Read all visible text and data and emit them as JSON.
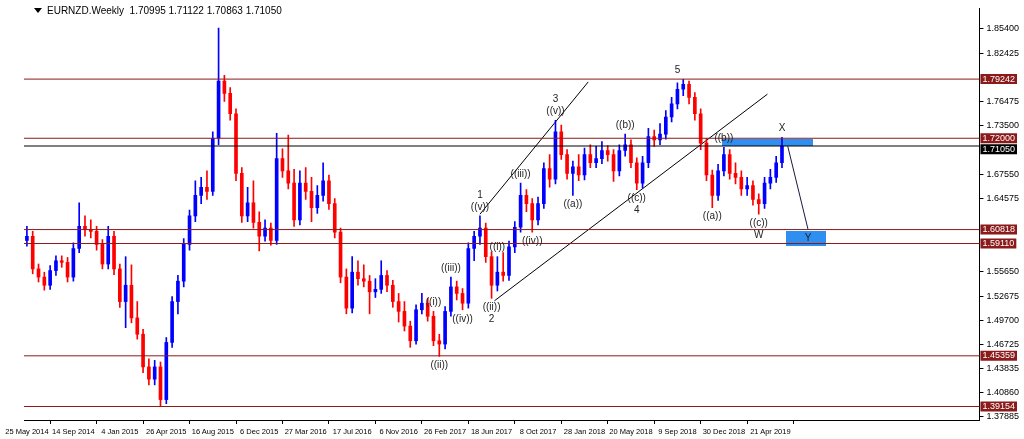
{
  "chart_data": {
    "type": "candlestick",
    "title": "EURNZD.Weekly  1.70995 1.71122 1.70863 1.71050",
    "x": [
      "2014-05-25",
      "2014-06-08",
      "2014-06-22",
      "2014-07-06",
      "2014-07-20",
      "2014-08-03",
      "2014-08-17",
      "2014-08-31",
      "2014-09-14",
      "2014-09-28",
      "2014-10-12",
      "2014-10-26",
      "2014-11-09",
      "2014-11-23",
      "2014-12-07",
      "2014-12-21",
      "2015-01-04",
      "2015-01-18",
      "2015-02-01",
      "2015-02-15",
      "2015-03-01",
      "2015-03-15",
      "2015-03-29",
      "2015-04-12",
      "2015-04-26",
      "2015-05-10",
      "2015-05-24",
      "2015-06-07",
      "2015-06-21",
      "2015-07-05",
      "2015-07-19",
      "2015-08-02",
      "2015-08-16",
      "2015-08-30",
      "2015-09-13",
      "2015-09-27",
      "2015-10-11",
      "2015-10-25",
      "2015-11-08",
      "2015-11-22",
      "2015-12-06",
      "2015-12-20",
      "2016-01-03",
      "2016-01-17",
      "2016-01-31",
      "2016-02-14",
      "2016-02-28",
      "2016-03-13",
      "2016-03-27",
      "2016-04-10",
      "2016-04-24",
      "2016-05-08",
      "2016-05-22",
      "2016-06-05",
      "2016-06-19",
      "2016-07-03",
      "2016-07-17",
      "2016-07-31",
      "2016-08-14",
      "2016-08-28",
      "2016-09-11",
      "2016-09-25",
      "2016-10-09",
      "2016-10-23",
      "2016-11-06",
      "2016-11-20",
      "2016-12-04",
      "2016-12-18",
      "2017-01-01",
      "2017-01-15",
      "2017-01-29",
      "2017-02-12",
      "2017-02-26",
      "2017-03-12",
      "2017-03-26",
      "2017-04-09",
      "2017-04-23",
      "2017-05-07",
      "2017-05-21",
      "2017-06-04",
      "2017-06-18",
      "2017-07-02",
      "2017-07-16",
      "2017-07-30",
      "2017-08-13",
      "2017-08-27",
      "2017-09-10",
      "2017-09-24",
      "2017-10-08",
      "2017-10-22",
      "2017-11-05",
      "2017-11-19",
      "2017-12-03",
      "2017-12-17",
      "2017-12-31",
      "2018-01-14",
      "2018-01-28",
      "2018-02-11",
      "2018-02-25",
      "2018-03-11",
      "2018-03-25",
      "2018-04-08",
      "2018-04-22",
      "2018-05-06",
      "2018-05-20",
      "2018-06-03",
      "2018-06-17",
      "2018-07-01",
      "2018-07-15",
      "2018-07-29",
      "2018-08-12",
      "2018-08-26",
      "2018-09-09",
      "2018-09-23",
      "2018-10-07",
      "2018-10-21",
      "2018-11-04",
      "2018-11-18",
      "2018-12-02",
      "2018-12-16",
      "2018-12-30",
      "2019-01-13",
      "2019-01-27",
      "2019-02-10",
      "2019-02-24",
      "2019-03-10",
      "2019-03-24",
      "2019-04-07",
      "2019-04-21",
      "2019-05-05",
      "2019-05-19"
    ],
    "ohlc": [
      [
        1.595,
        1.612,
        1.588,
        1.6
      ],
      [
        1.6,
        1.606,
        1.554,
        1.56
      ],
      [
        1.56,
        1.566,
        1.544,
        1.55
      ],
      [
        1.55,
        1.556,
        1.534,
        1.54
      ],
      [
        1.54,
        1.564,
        1.535,
        1.558
      ],
      [
        1.558,
        1.576,
        1.552,
        1.57
      ],
      [
        1.57,
        1.576,
        1.562,
        1.568
      ],
      [
        1.568,
        1.574,
        1.544,
        1.55
      ],
      [
        1.55,
        1.592,
        1.545,
        1.585
      ],
      [
        1.585,
        1.641,
        1.58,
        1.612
      ],
      [
        1.612,
        1.625,
        1.6,
        1.608
      ],
      [
        1.608,
        1.62,
        1.598,
        1.606
      ],
      [
        1.606,
        1.612,
        1.583,
        1.59
      ],
      [
        1.59,
        1.596,
        1.56,
        1.566
      ],
      [
        1.566,
        1.612,
        1.56,
        1.6
      ],
      [
        1.6,
        1.606,
        1.553,
        1.56
      ],
      [
        1.56,
        1.566,
        1.513,
        1.52
      ],
      [
        1.52,
        1.575,
        1.488,
        1.54
      ],
      [
        1.54,
        1.565,
        1.494,
        1.5
      ],
      [
        1.5,
        1.52,
        1.474,
        1.48
      ],
      [
        1.48,
        1.486,
        1.433,
        1.44
      ],
      [
        1.44,
        1.45,
        1.418,
        1.425
      ],
      [
        1.425,
        1.448,
        1.418,
        1.44
      ],
      [
        1.44,
        1.446,
        1.3915,
        1.4
      ],
      [
        1.4,
        1.476,
        1.395,
        1.47
      ],
      [
        1.47,
        1.526,
        1.464,
        1.52
      ],
      [
        1.52,
        1.552,
        1.505,
        1.545
      ],
      [
        1.545,
        1.597,
        1.538,
        1.59
      ],
      [
        1.59,
        1.632,
        1.583,
        1.625
      ],
      [
        1.625,
        1.668,
        1.618,
        1.65
      ],
      [
        1.65,
        1.672,
        1.64,
        1.66
      ],
      [
        1.66,
        1.68,
        1.645,
        1.655
      ],
      [
        1.655,
        1.728,
        1.65,
        1.72
      ],
      [
        1.72,
        1.855,
        1.712,
        1.79
      ],
      [
        1.79,
        1.797,
        1.765,
        1.775
      ],
      [
        1.775,
        1.782,
        1.742,
        1.75
      ],
      [
        1.75,
        1.756,
        1.668,
        1.677
      ],
      [
        1.677,
        1.684,
        1.617,
        1.625
      ],
      [
        1.625,
        1.66,
        1.618,
        1.641
      ],
      [
        1.641,
        1.668,
        1.61,
        1.617
      ],
      [
        1.617,
        1.63,
        1.582,
        1.6
      ],
      [
        1.6,
        1.62,
        1.594,
        1.61
      ],
      [
        1.61,
        1.616,
        1.589,
        1.595
      ],
      [
        1.595,
        1.726,
        1.59,
        1.695
      ],
      [
        1.695,
        1.707,
        1.672,
        1.68
      ],
      [
        1.68,
        1.724,
        1.658,
        1.665
      ],
      [
        1.665,
        1.682,
        1.612,
        1.62
      ],
      [
        1.62,
        1.68,
        1.614,
        1.665
      ],
      [
        1.665,
        1.684,
        1.645,
        1.655
      ],
      [
        1.655,
        1.672,
        1.618,
        1.635
      ],
      [
        1.635,
        1.662,
        1.628,
        1.65
      ],
      [
        1.65,
        1.69,
        1.643,
        1.668
      ],
      [
        1.668,
        1.675,
        1.633,
        1.64
      ],
      [
        1.64,
        1.646,
        1.598,
        1.605
      ],
      [
        1.605,
        1.61,
        1.543,
        1.55
      ],
      [
        1.55,
        1.56,
        1.505,
        1.512
      ],
      [
        1.512,
        1.575,
        1.506,
        1.556
      ],
      [
        1.556,
        1.57,
        1.54,
        1.548
      ],
      [
        1.548,
        1.565,
        1.538,
        1.545
      ],
      [
        1.545,
        1.552,
        1.505,
        1.532
      ],
      [
        1.532,
        1.548,
        1.525,
        1.535
      ],
      [
        1.535,
        1.57,
        1.53,
        1.552
      ],
      [
        1.552,
        1.558,
        1.532,
        1.54
      ],
      [
        1.54,
        1.546,
        1.513,
        1.52
      ],
      [
        1.52,
        1.53,
        1.495,
        1.508
      ],
      [
        1.508,
        1.52,
        1.484,
        1.49
      ],
      [
        1.49,
        1.496,
        1.464,
        1.472
      ],
      [
        1.472,
        1.516,
        1.468,
        1.51
      ],
      [
        1.51,
        1.53,
        1.505,
        1.518
      ],
      [
        1.518,
        1.524,
        1.496,
        1.502
      ],
      [
        1.502,
        1.508,
        1.466,
        1.472
      ],
      [
        1.472,
        1.48,
        1.453,
        1.468
      ],
      [
        1.468,
        1.514,
        1.462,
        1.508
      ],
      [
        1.508,
        1.55,
        1.502,
        1.538
      ],
      [
        1.538,
        1.545,
        1.522,
        1.53
      ],
      [
        1.53,
        1.536,
        1.51,
        1.518
      ],
      [
        1.518,
        1.592,
        1.512,
        1.585
      ],
      [
        1.585,
        1.606,
        1.57,
        1.6
      ],
      [
        1.6,
        1.625,
        1.59,
        1.61
      ],
      [
        1.61,
        1.616,
        1.568,
        1.575
      ],
      [
        1.575,
        1.581,
        1.524,
        1.54
      ],
      [
        1.54,
        1.575,
        1.533,
        1.556
      ],
      [
        1.556,
        1.58,
        1.545,
        1.552
      ],
      [
        1.552,
        1.594,
        1.546,
        1.587
      ],
      [
        1.587,
        1.618,
        1.58,
        1.611
      ],
      [
        1.611,
        1.665,
        1.605,
        1.65
      ],
      [
        1.65,
        1.657,
        1.63,
        1.64
      ],
      [
        1.64,
        1.646,
        1.605,
        1.62
      ],
      [
        1.62,
        1.648,
        1.614,
        1.64
      ],
      [
        1.64,
        1.69,
        1.634,
        1.683
      ],
      [
        1.683,
        1.7,
        1.66,
        1.67
      ],
      [
        1.67,
        1.742,
        1.664,
        1.728
      ],
      [
        1.728,
        1.736,
        1.694,
        1.7
      ],
      [
        1.7,
        1.706,
        1.67,
        1.677
      ],
      [
        1.677,
        1.692,
        1.65,
        1.685
      ],
      [
        1.685,
        1.7,
        1.668,
        1.675
      ],
      [
        1.675,
        1.708,
        1.669,
        1.7
      ],
      [
        1.7,
        1.712,
        1.684,
        1.69
      ],
      [
        1.69,
        1.71,
        1.684,
        1.695
      ],
      [
        1.695,
        1.716,
        1.689,
        1.705
      ],
      [
        1.705,
        1.711,
        1.692,
        1.7
      ],
      [
        1.7,
        1.706,
        1.667,
        1.68
      ],
      [
        1.68,
        1.712,
        1.674,
        1.705
      ],
      [
        1.705,
        1.725,
        1.698,
        1.712
      ],
      [
        1.712,
        1.718,
        1.684,
        1.69
      ],
      [
        1.69,
        1.696,
        1.657,
        1.665
      ],
      [
        1.665,
        1.698,
        1.659,
        1.69
      ],
      [
        1.69,
        1.732,
        1.684,
        1.722
      ],
      [
        1.722,
        1.73,
        1.71,
        1.718
      ],
      [
        1.718,
        1.738,
        1.712,
        1.725
      ],
      [
        1.725,
        1.754,
        1.719,
        1.746
      ],
      [
        1.746,
        1.77,
        1.74,
        1.762
      ],
      [
        1.762,
        1.788,
        1.756,
        1.78
      ],
      [
        1.78,
        1.792,
        1.772,
        1.786
      ],
      [
        1.786,
        1.79,
        1.762,
        1.77
      ],
      [
        1.77,
        1.776,
        1.742,
        1.75
      ],
      [
        1.75,
        1.756,
        1.706,
        1.714
      ],
      [
        1.714,
        1.72,
        1.668,
        1.675
      ],
      [
        1.675,
        1.681,
        1.635,
        1.65
      ],
      [
        1.65,
        1.688,
        1.644,
        1.68
      ],
      [
        1.68,
        1.709,
        1.674,
        1.7
      ],
      [
        1.7,
        1.706,
        1.67,
        1.677
      ],
      [
        1.677,
        1.69,
        1.664,
        1.672
      ],
      [
        1.672,
        1.68,
        1.65,
        1.658
      ],
      [
        1.658,
        1.672,
        1.65,
        1.662
      ],
      [
        1.662,
        1.668,
        1.638,
        1.645
      ],
      [
        1.645,
        1.652,
        1.627,
        1.64
      ],
      [
        1.64,
        1.672,
        1.634,
        1.665
      ],
      [
        1.665,
        1.682,
        1.658,
        1.672
      ],
      [
        1.672,
        1.698,
        1.666,
        1.69
      ],
      [
        1.69,
        1.721,
        1.684,
        1.7105
      ]
    ],
    "series": [
      {
        "type": "line",
        "color": "#000000",
        "x": [
          "2017-05-21",
          "2018-02-06"
        ],
        "values": [
          1.627,
          1.789
        ]
      },
      {
        "type": "line",
        "color": "#000000",
        "x": [
          "2017-06-25",
          "2019-04-14"
        ],
        "values": [
          1.521,
          1.774
        ]
      },
      {
        "type": "line",
        "color": "#1a1a40",
        "x": [
          "2019-06-02",
          "2019-07-21"
        ],
        "values": [
          1.71,
          1.608
        ]
      }
    ],
    "xlim": [
      "2014-05-18",
      "2020-09-06"
    ],
    "xticks": [
      {
        "value": "2014-05-25",
        "label": "25 May 2014"
      },
      {
        "value": "2014-09-14",
        "label": "14 Sep 2014"
      },
      {
        "value": "2015-01-04",
        "label": "4 Jan 2015"
      },
      {
        "value": "2015-04-26",
        "label": "26 Apr 2015"
      },
      {
        "value": "2015-08-16",
        "label": "16 Aug 2015"
      },
      {
        "value": "2015-12-06",
        "label": "6 Dec 2015"
      },
      {
        "value": "2016-03-27",
        "label": "27 Mar 2016"
      },
      {
        "value": "2016-07-17",
        "label": "17 Jul 2016"
      },
      {
        "value": "2016-11-06",
        "label": "6 Nov 2016"
      },
      {
        "value": "2017-02-26",
        "label": "26 Feb 2017"
      },
      {
        "value": "2017-06-18",
        "label": "18 Jun 2017"
      },
      {
        "value": "2017-10-08",
        "label": "8 Oct 2017"
      },
      {
        "value": "2018-01-28",
        "label": "28 Jan 2018"
      },
      {
        "value": "2018-05-20",
        "label": "20 May 2018"
      },
      {
        "value": "2018-09-09",
        "label": "9 Sep 2018"
      },
      {
        "value": "2018-12-30",
        "label": "30 Dec 2018"
      },
      {
        "value": "2019-04-21",
        "label": "21 Apr 2019"
      }
    ],
    "ylim": [
      1.375,
      1.879
    ],
    "yticks": [
      {
        "value": 1.854,
        "label": "1.85400"
      },
      {
        "value": 1.82425,
        "label": "1.82425"
      },
      {
        "value": 1.76475,
        "label": "1.76475"
      },
      {
        "value": 1.735,
        "label": "1.73500"
      },
      {
        "value": 1.6755,
        "label": "1.67550"
      },
      {
        "value": 1.64575,
        "label": "1.64575"
      },
      {
        "value": 1.5565,
        "label": "1.55650"
      },
      {
        "value": 1.52675,
        "label": "1.52675"
      },
      {
        "value": 1.497,
        "label": "1.49700"
      },
      {
        "value": 1.46725,
        "label": "1.46725"
      },
      {
        "value": 1.43835,
        "label": "1.43835"
      },
      {
        "value": 1.4086,
        "label": "1.40860"
      },
      {
        "value": 1.37885,
        "label": "1.37885"
      }
    ],
    "ref_lines": [
      {
        "axis": "y",
        "value": 1.79242,
        "label": "1.79242",
        "color": "#8b1a1a"
      },
      {
        "axis": "y",
        "value": 1.72,
        "label": "1.72000",
        "color": "#8b1a1a"
      },
      {
        "axis": "y",
        "value": 1.7105,
        "label": "1.71050",
        "color": "#000000"
      },
      {
        "axis": "y",
        "value": 1.60818,
        "label": "1.60818",
        "color": "#8b1a1a"
      },
      {
        "axis": "y",
        "value": 1.5911,
        "label": "1.59110",
        "color": "#8b1a1a"
      },
      {
        "axis": "y",
        "value": 1.45359,
        "label": "1.45359",
        "color": "#8b1a1a"
      },
      {
        "axis": "y",
        "value": 1.39154,
        "label": "1.39154",
        "color": "#8b1a1a"
      }
    ],
    "annotations": [
      {
        "text": "((v))",
        "x": "2017-05-21",
        "y": 1.625
      },
      {
        "text": "1",
        "x": "2017-05-21",
        "y": 1.625
      },
      {
        "text": "((ii))",
        "x": "2017-06-18",
        "y": 1.524
      },
      {
        "text": "2",
        "x": "2017-06-18",
        "y": 1.524
      },
      {
        "text": "((i))",
        "x": "2017-07-02",
        "y": 1.575
      },
      {
        "text": "((iii))",
        "x": "2017-08-27",
        "y": 1.665
      },
      {
        "text": "((iv))",
        "x": "2017-09-24",
        "y": 1.605
      },
      {
        "text": "((v))",
        "x": "2017-11-19",
        "y": 1.742
      },
      {
        "text": "3",
        "x": "2017-11-19",
        "y": 1.742
      },
      {
        "text": "((a))",
        "x": "2017-12-31",
        "y": 1.65
      },
      {
        "text": "((i))",
        "x": "2017-01-29",
        "y": 1.508
      },
      {
        "text": "((ii))",
        "x": "2017-02-12",
        "y": 1.453
      },
      {
        "text": "((iii))",
        "x": "2017-03-12",
        "y": 1.55
      },
      {
        "text": "((iv))",
        "x": "2017-04-09",
        "y": 1.51
      },
      {
        "text": "((b))",
        "x": "2018-05-06",
        "y": 1.725
      },
      {
        "text": "((c))",
        "x": "2018-06-03",
        "y": 1.657
      },
      {
        "text": "4",
        "x": "2018-06-03",
        "y": 1.657
      },
      {
        "text": "5",
        "x": "2018-09-09",
        "y": 1.792
      },
      {
        "text": "((a))",
        "x": "2018-12-02",
        "y": 1.635
      },
      {
        "text": "((b))",
        "x": "2018-12-30",
        "y": 1.709
      },
      {
        "text": "((c))",
        "x": "2019-03-24",
        "y": 1.627
      },
      {
        "text": "W",
        "x": "2019-03-24",
        "y": 1.627
      },
      {
        "text": "X",
        "x": "2019-05-19",
        "y": 1.721
      },
      {
        "text": "Y",
        "x": "2019-07-21",
        "y": 1.608
      }
    ]
  }
}
